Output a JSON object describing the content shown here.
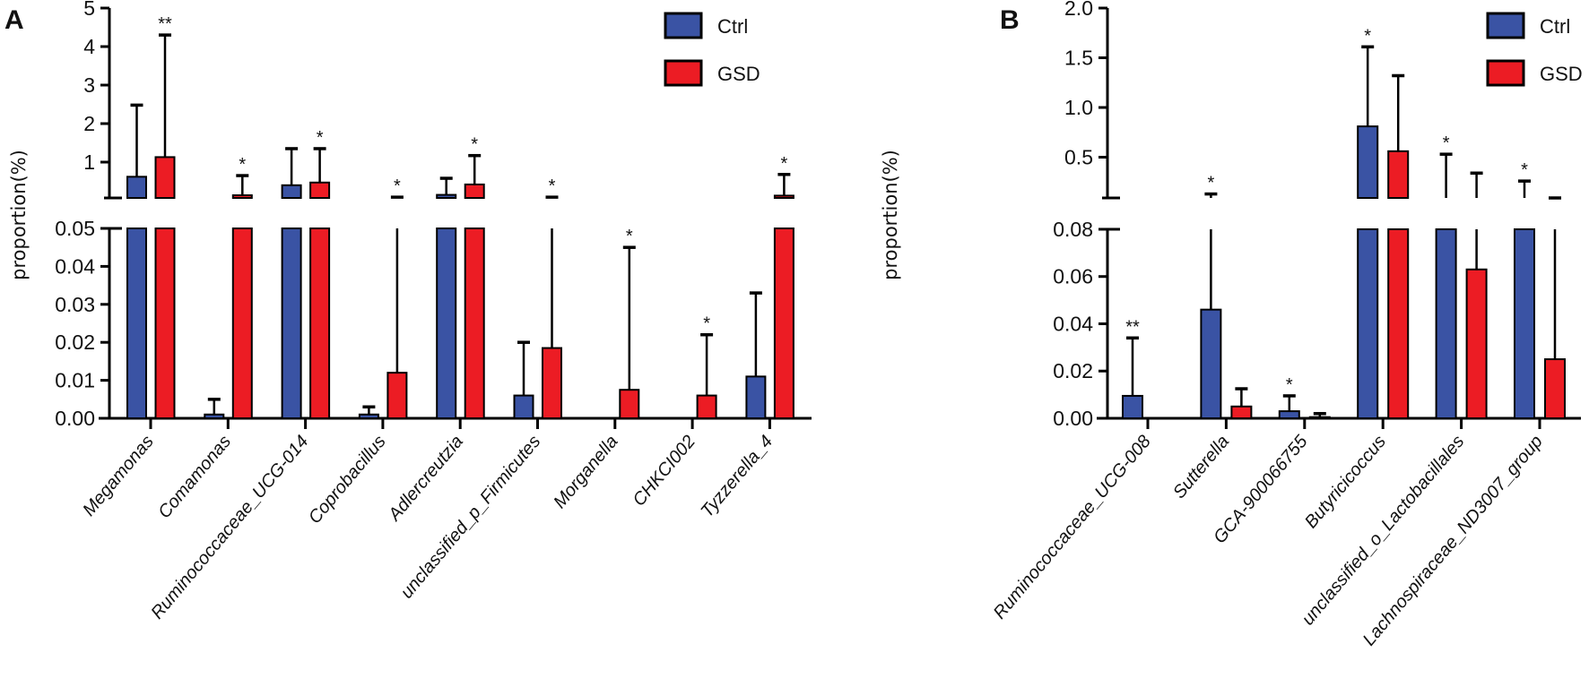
{
  "colors": {
    "Ctrl": "#3a53a4",
    "GSD": "#ec1c24"
  },
  "chart_data": [
    {
      "type": "bar",
      "panel_label": "A",
      "ylabel": "proportion(%)",
      "legend": [
        "Ctrl",
        "GSD"
      ],
      "legend_position": "top-right",
      "y_axis_break": true,
      "upper_ticks": [
        "1",
        "2",
        "3",
        "4",
        "5"
      ],
      "upper_tick_values": [
        1,
        2,
        3,
        4,
        5
      ],
      "lower_ticks": [
        "0.00",
        "0.01",
        "0.02",
        "0.03",
        "0.04",
        "0.05"
      ],
      "lower_tick_values": [
        0,
        0.01,
        0.02,
        0.03,
        0.04,
        0.05
      ],
      "ylim_lower": [
        0,
        0.05
      ],
      "ylim_upper": [
        0.07,
        5
      ],
      "categories": [
        "Megamonas",
        "Comamonas",
        "Ruminococcaceae_UCG-014",
        "Coprobacillus",
        "Adlercreutzia",
        "unclassified_p_Firmicutes",
        "Morganella",
        "CHKCI002",
        "Tyzzerella_4"
      ],
      "series": [
        {
          "name": "Ctrl",
          "values": [
            0.62,
            0.001,
            0.4,
            0.001,
            0.15,
            0.006,
            0,
            0,
            0.011
          ],
          "error_top": [
            2.48,
            0.005,
            1.35,
            0.003,
            0.58,
            0.02,
            null,
            null,
            0.033
          ]
        },
        {
          "name": "GSD",
          "values": [
            1.13,
            0.14,
            0.47,
            0.012,
            0.42,
            0.0185,
            0.0075,
            0.006,
            0.13
          ],
          "error_top": [
            4.3,
            0.65,
            1.35,
            0.09,
            1.17,
            0.09,
            0.045,
            0.022,
            0.68
          ]
        }
      ],
      "significance": [
        {
          "category": 0,
          "series": 1,
          "text": "**"
        },
        {
          "category": 1,
          "series": 1,
          "text": "*"
        },
        {
          "category": 2,
          "series": 1,
          "text": "*"
        },
        {
          "category": 3,
          "series": 1,
          "text": "*"
        },
        {
          "category": 4,
          "series": 1,
          "text": "*"
        },
        {
          "category": 5,
          "series": 1,
          "text": "*"
        },
        {
          "category": 6,
          "series": 1,
          "text": "*"
        },
        {
          "category": 7,
          "series": 1,
          "text": "*"
        },
        {
          "category": 8,
          "series": 1,
          "text": "*"
        }
      ]
    },
    {
      "type": "bar",
      "panel_label": "B",
      "ylabel": "proportion(%)",
      "legend": [
        "Ctrl",
        "GSD"
      ],
      "legend_position": "top-right",
      "y_axis_break": true,
      "upper_ticks": [
        "0.5",
        "1.0",
        "1.5",
        "2.0"
      ],
      "upper_tick_values": [
        0.5,
        1.0,
        1.5,
        2.0
      ],
      "lower_ticks": [
        "0.00",
        "0.02",
        "0.04",
        "0.06",
        "0.08"
      ],
      "lower_tick_values": [
        0,
        0.02,
        0.04,
        0.06,
        0.08
      ],
      "ylim_lower": [
        0,
        0.08
      ],
      "ylim_upper": [
        0.09,
        2.0
      ],
      "categories": [
        "Ruminococcaceae_UCG-008",
        "Sutterella",
        "GCA-900066755",
        "Butyricicoccus",
        "unclassified_o_Lactobacillales",
        "Lachnospiraceae_ND3007_group"
      ],
      "series": [
        {
          "name": "Ctrl",
          "values": [
            0.0095,
            0.046,
            0.003,
            0.81,
            0.09,
            0.09
          ],
          "error_top": [
            0.034,
            0.13,
            0.0095,
            1.61,
            0.53,
            0.26
          ]
        },
        {
          "name": "GSD",
          "values": [
            0,
            0.005,
            0.0005,
            0.56,
            0.063,
            0.025
          ],
          "error_top": [
            null,
            0.0125,
            0.002,
            1.32,
            0.34,
            0.09
          ]
        }
      ],
      "significance": [
        {
          "category": 0,
          "series": 0,
          "text": "**"
        },
        {
          "category": 1,
          "series": 0,
          "text": "*"
        },
        {
          "category": 2,
          "series": 0,
          "text": "*"
        },
        {
          "category": 3,
          "series": 0,
          "text": "*"
        },
        {
          "category": 4,
          "series": 0,
          "text": "*"
        },
        {
          "category": 5,
          "series": 0,
          "text": "*"
        }
      ]
    }
  ]
}
